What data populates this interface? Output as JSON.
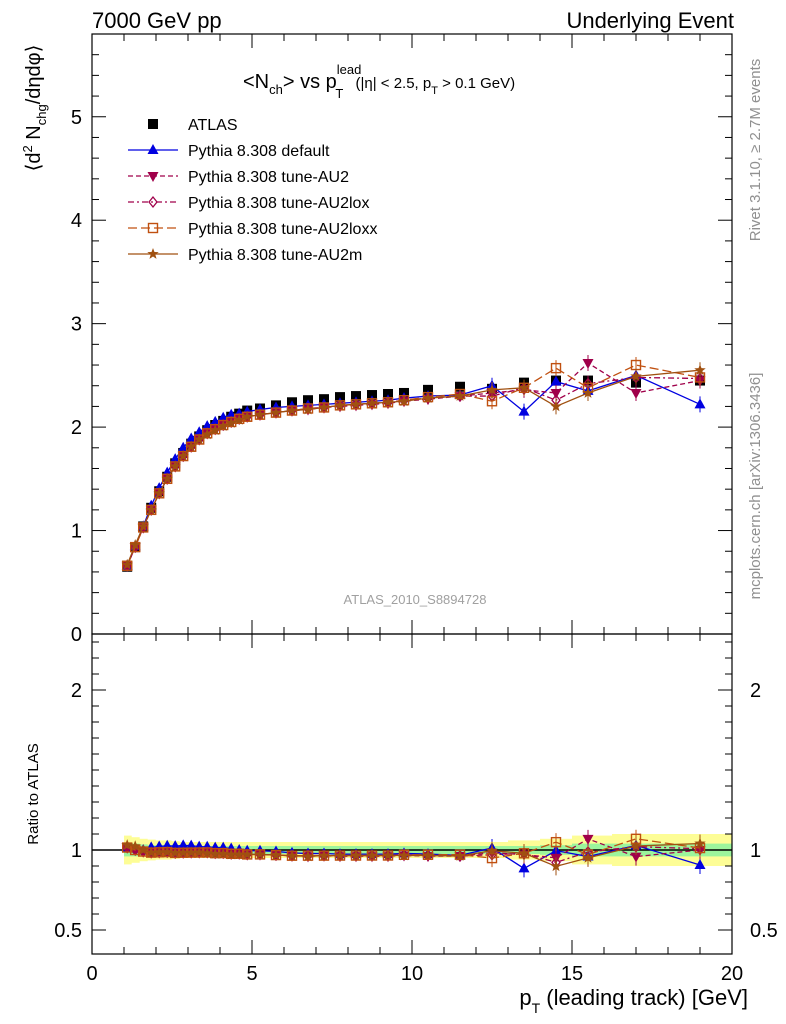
{
  "header": {
    "left": "7000 GeV pp",
    "right": "Underlying Event"
  },
  "title": {
    "main": "<N",
    "ch": "ch",
    "vs": "> vs p",
    "lead": "lead",
    "T": "T",
    "cut1": " (|η| < 2.5, p",
    "cut2": " > 0.1 GeV)"
  },
  "side": {
    "rivet": "Rivet 3.1.10, ≥ 2.7M events",
    "mcplots": "mcplots.cern.ch [arXiv:1306.3436]"
  },
  "watermark": "ATLAS_2010_S8894728",
  "axes": {
    "ylabel_main": {
      "a": "⟨d",
      "b": "2",
      "c": " N",
      "d": "chg",
      "e": "/dηdφ⟩"
    },
    "ylabel_ratio": "Ratio to ATLAS",
    "xlabel": {
      "a": "p",
      "b": "T",
      "c": " (leading track) [GeV]"
    }
  },
  "chart_data": {
    "type": "scatter",
    "title": "<Nch> vs pT lead (|η| < 2.5, pT > 0.1 GeV)",
    "xlabel": "pT (leading track) [GeV]",
    "ylabel": "⟨d2 Nchg/dηdφ⟩",
    "ratio_ylabel": "Ratio to ATLAS",
    "xlim": [
      0,
      20
    ],
    "ylim": [
      0,
      5.8
    ],
    "ratio_ylim": [
      0.35,
      2.35
    ],
    "x_ticks": [
      0,
      5,
      10,
      15,
      20
    ],
    "y_ticks": [
      0,
      1,
      2,
      3,
      4,
      5
    ],
    "ratio_y_ticks": [
      0.5,
      1,
      2
    ],
    "legend_position": "top-left",
    "x": [
      1.1,
      1.35,
      1.6,
      1.85,
      2.1,
      2.35,
      2.6,
      2.85,
      3.1,
      3.35,
      3.6,
      3.85,
      4.1,
      4.35,
      4.6,
      4.85,
      5.25,
      5.75,
      6.25,
      6.75,
      7.25,
      7.75,
      8.25,
      8.75,
      9.25,
      9.75,
      10.5,
      11.5,
      12.5,
      13.5,
      14.5,
      15.5,
      17.0,
      19.0
    ],
    "series": [
      {
        "name": "ATLAS",
        "color": "#000000",
        "marker": "square",
        "values": [
          0.65,
          0.84,
          1.04,
          1.22,
          1.38,
          1.52,
          1.65,
          1.75,
          1.84,
          1.91,
          1.97,
          2.02,
          2.06,
          2.1,
          2.13,
          2.16,
          2.18,
          2.21,
          2.24,
          2.26,
          2.27,
          2.29,
          2.3,
          2.31,
          2.32,
          2.33,
          2.36,
          2.39,
          2.37,
          2.43,
          2.45,
          2.45,
          2.43,
          2.45
        ]
      },
      {
        "name": "Pythia 8.308 default",
        "color": "#0000e0",
        "marker": "triangle-up",
        "line": "solid",
        "values": [
          0.66,
          0.85,
          1.04,
          1.24,
          1.41,
          1.56,
          1.69,
          1.8,
          1.89,
          1.95,
          2.01,
          2.05,
          2.09,
          2.12,
          2.13,
          2.15,
          2.17,
          2.19,
          2.2,
          2.21,
          2.22,
          2.23,
          2.24,
          2.25,
          2.26,
          2.28,
          2.3,
          2.31,
          2.4,
          2.15,
          2.44,
          2.35,
          2.5,
          2.22
        ]
      },
      {
        "name": "Pythia 8.308 tune-AU2",
        "color": "#a0004a",
        "marker": "triangle-down",
        "line": "dashed",
        "values": [
          0.66,
          0.84,
          1.03,
          1.2,
          1.36,
          1.5,
          1.62,
          1.72,
          1.81,
          1.88,
          1.94,
          1.98,
          2.02,
          2.05,
          2.08,
          2.1,
          2.12,
          2.14,
          2.16,
          2.17,
          2.19,
          2.2,
          2.21,
          2.22,
          2.23,
          2.25,
          2.27,
          2.3,
          2.33,
          2.36,
          2.33,
          2.62,
          2.33,
          2.45
        ]
      },
      {
        "name": "Pythia 8.308 tune-AU2lox",
        "color": "#a0004a",
        "marker": "diamond-open",
        "line": "dashdot",
        "values": [
          0.66,
          0.84,
          1.03,
          1.2,
          1.36,
          1.5,
          1.62,
          1.72,
          1.81,
          1.88,
          1.94,
          1.98,
          2.02,
          2.05,
          2.08,
          2.1,
          2.12,
          2.14,
          2.16,
          2.18,
          2.19,
          2.21,
          2.22,
          2.23,
          2.24,
          2.26,
          2.28,
          2.3,
          2.3,
          2.38,
          2.26,
          2.42,
          2.48,
          2.47
        ]
      },
      {
        "name": "Pythia 8.308 tune-AU2loxx",
        "color": "#c05010",
        "marker": "square-open",
        "line": "longdash",
        "values": [
          0.66,
          0.84,
          1.03,
          1.2,
          1.36,
          1.5,
          1.62,
          1.72,
          1.81,
          1.88,
          1.94,
          1.98,
          2.02,
          2.05,
          2.08,
          2.1,
          2.12,
          2.14,
          2.16,
          2.18,
          2.19,
          2.21,
          2.22,
          2.23,
          2.24,
          2.26,
          2.29,
          2.32,
          2.25,
          2.38,
          2.57,
          2.38,
          2.6,
          2.48
        ]
      },
      {
        "name": "Pythia 8.308 tune-AU2m",
        "color": "#a05010",
        "marker": "star",
        "line": "solid",
        "values": [
          0.67,
          0.86,
          1.04,
          1.2,
          1.36,
          1.5,
          1.62,
          1.72,
          1.81,
          1.88,
          1.93,
          1.97,
          2.01,
          2.04,
          2.07,
          2.1,
          2.12,
          2.14,
          2.16,
          2.17,
          2.19,
          2.21,
          2.22,
          2.23,
          2.24,
          2.25,
          2.28,
          2.3,
          2.36,
          2.38,
          2.2,
          2.33,
          2.49,
          2.55
        ]
      }
    ],
    "uncertainty_bands": {
      "inner_color": "#9cf59c",
      "outer_color": "#fdfd96",
      "inner_halfwidth": [
        0.04,
        0.04,
        0.035,
        0.03,
        0.03,
        0.03,
        0.03,
        0.025,
        0.025,
        0.025,
        0.025,
        0.025,
        0.025,
        0.025,
        0.025,
        0.025,
        0.025,
        0.025,
        0.025,
        0.025,
        0.025,
        0.025,
        0.025,
        0.025,
        0.025,
        0.025,
        0.025,
        0.025,
        0.025,
        0.025,
        0.03,
        0.04,
        0.04,
        0.04
      ],
      "outer_halfwidth": [
        0.09,
        0.08,
        0.07,
        0.065,
        0.06,
        0.06,
        0.055,
        0.05,
        0.05,
        0.05,
        0.05,
        0.05,
        0.05,
        0.05,
        0.05,
        0.05,
        0.05,
        0.05,
        0.05,
        0.05,
        0.05,
        0.05,
        0.05,
        0.05,
        0.05,
        0.05,
        0.05,
        0.05,
        0.05,
        0.06,
        0.07,
        0.09,
        0.1,
        0.1
      ]
    }
  }
}
